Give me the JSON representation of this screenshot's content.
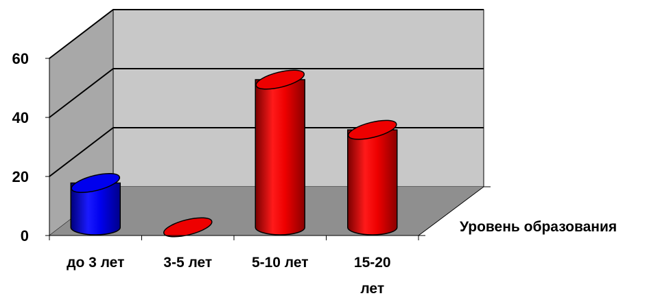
{
  "chart_data": {
    "type": "bar",
    "style": "3d-cylinder",
    "categories": [
      "до 3 лет",
      "3-5 лет",
      "5-10 лет",
      "15-20 лет"
    ],
    "category_lines": [
      [
        "до 3 лет"
      ],
      [
        "3-5 лет"
      ],
      [
        "5-10 лет"
      ],
      [
        "15-20",
        "лет"
      ]
    ],
    "values": [
      15,
      0,
      50,
      33
    ],
    "bar_colors": [
      "#0000ee",
      "#ee0000",
      "#ee0000",
      "#ee0000"
    ],
    "yticks": [
      0,
      20,
      40,
      60
    ],
    "ylim": [
      0,
      60
    ],
    "grid": true,
    "depth_axis_label": "Уровень образования",
    "colors": {
      "back_wall": "#c8c8c8",
      "side_wall": "#a8a8a8",
      "floor": "#8f8f8f"
    }
  }
}
